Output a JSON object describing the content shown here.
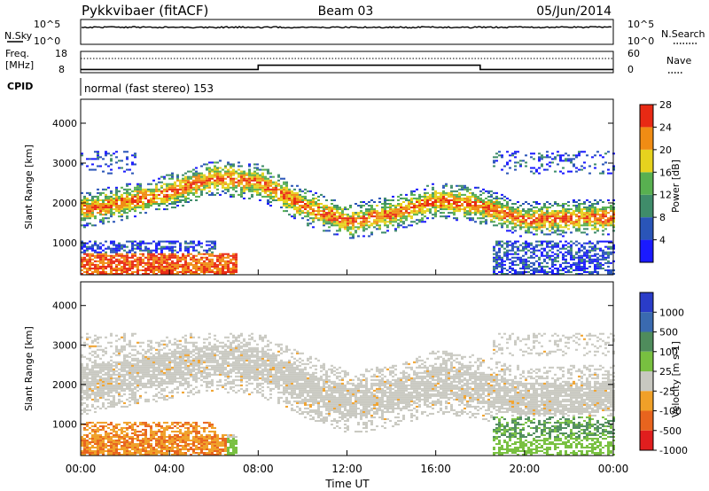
{
  "header": {
    "station": "Pykkvibaer (fitACF)",
    "beam": "Beam 03",
    "date": "05/Jun/2014"
  },
  "noise_panel": {
    "left_label": "N.Sky",
    "right_label": "N.Search",
    "left_ticks": [
      "10^5",
      "10^0"
    ],
    "right_ticks": [
      "10^5",
      "10^0"
    ]
  },
  "freq_panel": {
    "left_label_1": "Freq.",
    "left_label_2": "[MHz]",
    "right_label": "Nave",
    "left_ticks": [
      "18",
      "8"
    ],
    "right_ticks": [
      "60",
      "0"
    ]
  },
  "cpid": {
    "label": "CPID",
    "text": "normal (fast stereo) 153"
  },
  "chart_data": [
    {
      "type": "line",
      "panel": "noise",
      "series": [
        {
          "name": "N.Sky",
          "x": [
            "00:00",
            "24:00"
          ],
          "y": [
            100000,
            100000
          ]
        }
      ]
    },
    {
      "type": "line",
      "panel": "frequency",
      "series": [
        {
          "name": "Freq.",
          "x": [
            "00:00",
            "08:00",
            "08:00",
            "18:00",
            "18:00",
            "24:00"
          ],
          "y": [
            9.5,
            9.5,
            11.5,
            11.5,
            9.5,
            9.5
          ]
        }
      ]
    },
    {
      "type": "heatmap",
      "panel": "power",
      "ylabel": "Slant Range [km]",
      "yticks": [
        "1000",
        "2000",
        "3000",
        "4000"
      ],
      "ylim": [
        200,
        4600
      ],
      "colorbar_label": "Power [dB]",
      "colorbar_ticks": [
        "4",
        "8",
        "12",
        "16",
        "20",
        "24",
        "28"
      ],
      "colors": [
        "#1a1aff",
        "#2a55b8",
        "#3f8c6a",
        "#58b050",
        "#e6d21e",
        "#f08c14",
        "#e82a14"
      ],
      "bands": [
        {
          "x": [
            "00:00",
            "03:00",
            "06:00",
            "08:00",
            "10:00",
            "11:30",
            "12:00",
            "14:00",
            "16:00",
            "18:00",
            "20:00",
            "22:00",
            "24:00"
          ],
          "center_km": [
            1800,
            2100,
            2600,
            2500,
            1900,
            1600,
            1500,
            1700,
            2050,
            1900,
            1550,
            1600,
            1600
          ],
          "width_km": 450,
          "power_db": 20
        }
      ]
    },
    {
      "type": "heatmap",
      "panel": "velocity",
      "ylabel": "Slant Range [km]",
      "yticks": [
        "1000",
        "2000",
        "3000",
        "4000"
      ],
      "ylim": [
        200,
        4600
      ],
      "colorbar_label": "Velocity [m s-1]",
      "colorbar_ticks": [
        "1000",
        "500",
        "100",
        "25",
        "-25",
        "-100",
        "-500",
        "-1000"
      ],
      "colors": [
        "#2a3cc8",
        "#3a6ab0",
        "#4f8c5c",
        "#78c040",
        "#c8c8c0",
        "#f0a028",
        "#e8641e",
        "#e01e1e"
      ],
      "bands": [
        {
          "x": [
            "00:00",
            "03:00",
            "06:00",
            "08:00",
            "10:00",
            "11:30",
            "12:00",
            "14:00",
            "16:00",
            "18:00",
            "20:00",
            "22:00",
            "24:00"
          ],
          "center_km": [
            2000,
            2300,
            2600,
            2500,
            1950,
            1650,
            1500,
            1700,
            2050,
            1900,
            1600,
            1650,
            1700
          ],
          "width_km": 800,
          "velocity": 0
        }
      ]
    }
  ],
  "x_axis": {
    "label": "Time UT",
    "ticks": [
      "00:00",
      "04:00",
      "08:00",
      "12:00",
      "16:00",
      "20:00",
      "00:00"
    ]
  }
}
